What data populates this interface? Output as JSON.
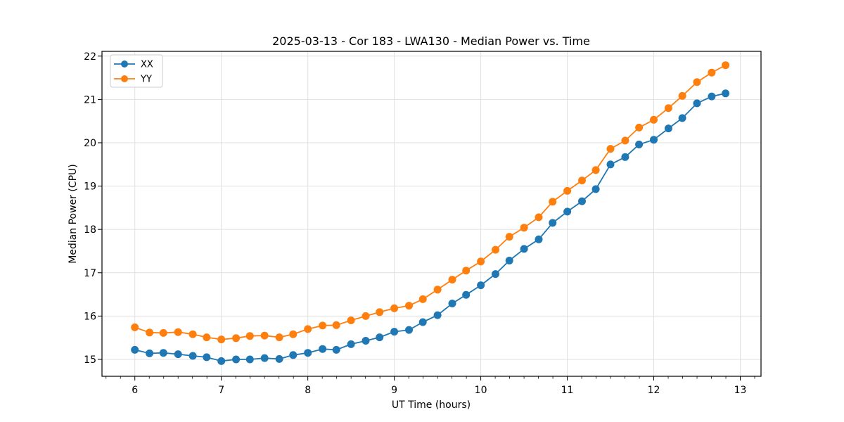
{
  "figure": {
    "background": "#ffffff"
  },
  "chart_data": {
    "type": "line",
    "title": "2025-03-13 - Cor 183 - LWA130 - Median Power vs. Time",
    "xlabel": "UT Time (hours)",
    "ylabel": "Median Power (CPU)",
    "xlim": [
      5.62,
      13.24
    ],
    "ylim": [
      14.61,
      22.11
    ],
    "xticks": [
      6,
      7,
      8,
      9,
      10,
      11,
      12,
      13
    ],
    "yticks": [
      15,
      16,
      17,
      18,
      19,
      20,
      21,
      22
    ],
    "x_minor_interval": 0.16667,
    "grid": "major-both",
    "grid_color": "#e0e0e0",
    "axis_color": "#000000",
    "legend": {
      "position": "upper-left",
      "frame_color": "#cccccc"
    },
    "x": [
      6.0,
      6.17,
      6.33,
      6.5,
      6.67,
      6.83,
      7.0,
      7.17,
      7.33,
      7.5,
      7.67,
      7.83,
      8.0,
      8.17,
      8.33,
      8.5,
      8.67,
      8.83,
      9.0,
      9.17,
      9.33,
      9.5,
      9.67,
      9.83,
      10.0,
      10.17,
      10.33,
      10.5,
      10.67,
      10.83,
      11.0,
      11.17,
      11.33,
      11.5,
      11.67,
      11.83,
      12.0,
      12.17,
      12.33,
      12.5,
      12.67,
      12.83
    ],
    "series": [
      {
        "name": "XX",
        "color": "#1f77b4",
        "marker": "circle",
        "values": [
          15.22,
          15.14,
          15.15,
          15.12,
          15.08,
          15.05,
          14.96,
          15.0,
          15.0,
          15.03,
          15.01,
          15.1,
          15.15,
          15.24,
          15.22,
          15.35,
          15.43,
          15.51,
          15.64,
          15.68,
          15.86,
          16.02,
          16.29,
          16.49,
          16.71,
          16.97,
          17.28,
          17.55,
          17.77,
          18.15,
          18.41,
          18.65,
          18.93,
          19.5,
          19.67,
          19.96,
          20.07,
          20.33,
          20.57,
          20.91,
          21.07,
          21.14
        ]
      },
      {
        "name": "YY",
        "color": "#ff7f0e",
        "marker": "circle",
        "values": [
          15.74,
          15.62,
          15.61,
          15.63,
          15.58,
          15.51,
          15.46,
          15.49,
          15.54,
          15.55,
          15.51,
          15.58,
          15.7,
          15.78,
          15.79,
          15.9,
          16.0,
          16.09,
          16.18,
          16.24,
          16.39,
          16.61,
          16.84,
          17.05,
          17.26,
          17.53,
          17.83,
          18.04,
          18.28,
          18.64,
          18.89,
          19.13,
          19.37,
          19.86,
          20.05,
          20.35,
          20.53,
          20.8,
          21.08,
          21.4,
          21.62,
          21.79
        ]
      }
    ]
  }
}
